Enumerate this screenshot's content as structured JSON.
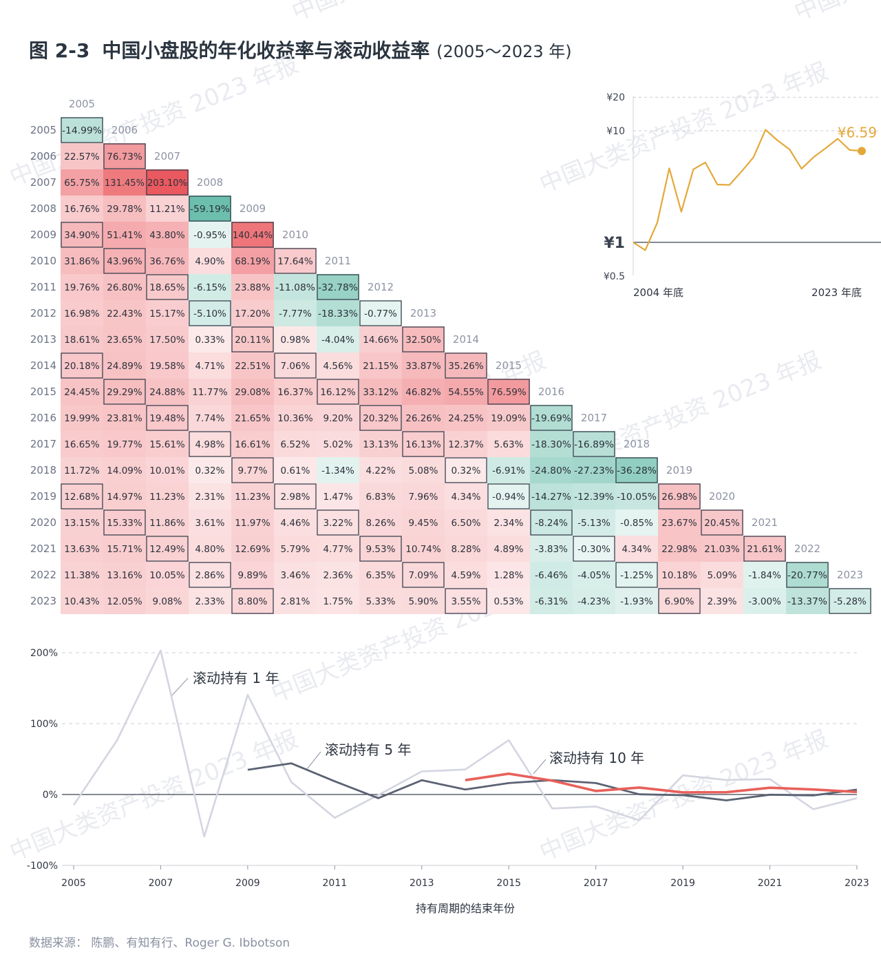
{
  "title": {
    "figure_number": "图 2-3",
    "text": "中国小盘股的年化收益率与滚动收益率",
    "range": "(2005～2023 年)"
  },
  "source": "数据来源：  陈鹏、有知有行、Roger G. Ibbotson",
  "watermark": "中国大类资产投资 2023 年报",
  "colors": {
    "positive": "#e8474d",
    "negative": "#3aa98f",
    "roll1": "#d3d5e0",
    "roll5": "#5b6272",
    "roll10": "#e8605a",
    "wealth": "#e4a83a"
  },
  "chart_data": [
    {
      "type": "heatmap",
      "title": "",
      "years": [
        "2005",
        "2006",
        "2007",
        "2008",
        "2009",
        "2010",
        "2011",
        "2012",
        "2013",
        "2014",
        "2015",
        "2016",
        "2017",
        "2018",
        "2019",
        "2020",
        "2021",
        "2022",
        "2023"
      ],
      "cells": [
        [
          "-14.99%"
        ],
        [
          "22.57%",
          "76.73%"
        ],
        [
          "65.75%",
          "131.45%",
          "203.10%"
        ],
        [
          "16.76%",
          "29.78%",
          "11.21%",
          "-59.19%"
        ],
        [
          "34.90%",
          "51.41%",
          "43.80%",
          "-0.95%",
          "140.44%"
        ],
        [
          "31.86%",
          "43.96%",
          "36.76%",
          "4.90%",
          "68.19%",
          "17.64%"
        ],
        [
          "19.76%",
          "26.80%",
          "18.65%",
          "-6.15%",
          "23.88%",
          "-11.08%",
          "-32.78%"
        ],
        [
          "16.98%",
          "22.43%",
          "15.17%",
          "-5.10%",
          "17.20%",
          "-7.77%",
          "-18.33%",
          "-0.77%"
        ],
        [
          "18.61%",
          "23.65%",
          "17.50%",
          "0.33%",
          "20.11%",
          "0.98%",
          "-4.04%",
          "14.66%",
          "32.50%"
        ],
        [
          "20.18%",
          "24.89%",
          "19.58%",
          "4.71%",
          "22.51%",
          "7.06%",
          "4.56%",
          "21.15%",
          "33.87%",
          "35.26%"
        ],
        [
          "24.45%",
          "29.29%",
          "24.88%",
          "11.77%",
          "29.08%",
          "16.37%",
          "16.12%",
          "33.12%",
          "46.82%",
          "54.55%",
          "76.59%"
        ],
        [
          "19.99%",
          "23.81%",
          "19.48%",
          "7.74%",
          "21.65%",
          "10.36%",
          "9.20%",
          "20.32%",
          "26.26%",
          "24.25%",
          "19.09%",
          "-19.69%"
        ],
        [
          "16.65%",
          "19.77%",
          "15.61%",
          "4.98%",
          "16.61%",
          "6.52%",
          "5.02%",
          "13.13%",
          "16.13%",
          "12.37%",
          "5.63%",
          "-18.30%",
          "-16.89%"
        ],
        [
          "11.72%",
          "14.09%",
          "10.01%",
          "0.32%",
          "9.77%",
          "0.61%",
          "-1.34%",
          "4.22%",
          "5.08%",
          "0.32%",
          "-6.91%",
          "-24.80%",
          "-27.23%",
          "-36.28%"
        ],
        [
          "12.68%",
          "14.97%",
          "11.23%",
          "2.31%",
          "11.23%",
          "2.98%",
          "1.47%",
          "6.83%",
          "7.96%",
          "4.34%",
          "-0.94%",
          "-14.27%",
          "-12.39%",
          "-10.05%",
          "26.98%"
        ],
        [
          "13.15%",
          "15.33%",
          "11.86%",
          "3.61%",
          "11.97%",
          "4.46%",
          "3.22%",
          "8.26%",
          "9.45%",
          "6.50%",
          "2.34%",
          "-8.24%",
          "-5.13%",
          "-0.85%",
          "23.67%",
          "20.45%"
        ],
        [
          "13.63%",
          "15.71%",
          "12.49%",
          "4.80%",
          "12.69%",
          "5.79%",
          "4.77%",
          "9.53%",
          "10.74%",
          "8.28%",
          "4.89%",
          "-3.83%",
          "-0.30%",
          "4.34%",
          "22.98%",
          "21.03%",
          "21.61%"
        ],
        [
          "11.38%",
          "13.16%",
          "10.05%",
          "2.86%",
          "9.89%",
          "3.46%",
          "2.36%",
          "6.35%",
          "7.09%",
          "4.59%",
          "1.28%",
          "-6.46%",
          "-4.05%",
          "-1.25%",
          "10.18%",
          "5.09%",
          "-1.84%",
          "-20.77%"
        ],
        [
          "10.43%",
          "12.05%",
          "9.08%",
          "2.33%",
          "8.80%",
          "2.81%",
          "1.75%",
          "5.33%",
          "5.90%",
          "3.55%",
          "0.53%",
          "-6.31%",
          "-4.23%",
          "-1.93%",
          "6.90%",
          "2.39%",
          "-3.00%",
          "-13.37%",
          "-5.28%"
        ]
      ],
      "boxed_cells": [
        [
          0,
          0
        ],
        [
          1,
          1
        ],
        [
          2,
          2
        ],
        [
          3,
          3
        ],
        [
          4,
          4
        ],
        [
          5,
          5
        ],
        [
          6,
          6
        ],
        [
          7,
          7
        ],
        [
          8,
          8
        ],
        [
          9,
          9
        ],
        [
          10,
          10
        ],
        [
          11,
          11
        ],
        [
          12,
          12
        ],
        [
          13,
          13
        ],
        [
          14,
          14
        ],
        [
          15,
          15
        ],
        [
          16,
          16
        ],
        [
          17,
          17
        ],
        [
          18,
          18
        ],
        [
          4,
          0
        ],
        [
          9,
          0
        ],
        [
          14,
          0
        ],
        [
          5,
          1
        ],
        [
          10,
          1
        ],
        [
          15,
          1
        ],
        [
          6,
          2
        ],
        [
          11,
          2
        ],
        [
          16,
          2
        ],
        [
          7,
          3
        ],
        [
          12,
          3
        ],
        [
          17,
          3
        ],
        [
          8,
          4
        ],
        [
          13,
          4
        ],
        [
          18,
          4
        ],
        [
          9,
          5
        ],
        [
          14,
          5
        ],
        [
          10,
          6
        ],
        [
          15,
          6
        ],
        [
          11,
          7
        ],
        [
          16,
          7
        ],
        [
          12,
          8
        ],
        [
          17,
          8
        ],
        [
          13,
          9
        ],
        [
          18,
          9
        ],
        [
          14,
          10
        ],
        [
          15,
          11
        ],
        [
          16,
          12
        ],
        [
          17,
          13
        ],
        [
          18,
          14
        ]
      ]
    },
    {
      "type": "line",
      "title": "",
      "x_start_label": "2004 年底",
      "x_end_label": "2023 年底",
      "y_scale": "log",
      "y_ticks": [
        "¥20",
        "¥10",
        "¥1",
        "¥0.5"
      ],
      "y_tick_values": [
        20,
        10,
        1,
        0.5
      ],
      "end_label": "¥6.59",
      "x": [
        2004,
        2005,
        2006,
        2007,
        2008,
        2009,
        2010,
        2011,
        2012,
        2013,
        2014,
        2015,
        2016,
        2017,
        2018,
        2019,
        2020,
        2021,
        2022,
        2023
      ],
      "values": [
        1.0,
        0.85,
        1.5,
        4.61,
        1.88,
        4.52,
        5.2,
        3.3,
        3.27,
        4.31,
        5.79,
        10.22,
        8.19,
        6.81,
        4.57,
        5.8,
        6.98,
        8.49,
        6.73,
        6.59
      ]
    },
    {
      "type": "line",
      "title": "",
      "xlabel": "持有周期的结束年份",
      "ylabel": "",
      "ylim": [
        -100,
        200
      ],
      "y_ticks": [
        "200%",
        "100%",
        "0%",
        "-100%"
      ],
      "y_tick_values": [
        200,
        100,
        0,
        -100
      ],
      "x_ticks": [
        "2005",
        "2007",
        "2009",
        "2011",
        "2013",
        "2015",
        "2017",
        "2019",
        "2021",
        "2023"
      ],
      "series": [
        {
          "name": "滚动持有 1 年",
          "x": [
            2005,
            2006,
            2007,
            2008,
            2009,
            2010,
            2011,
            2012,
            2013,
            2014,
            2015,
            2016,
            2017,
            2018,
            2019,
            2020,
            2021,
            2022,
            2023
          ],
          "values": [
            -14.99,
            76.73,
            203.1,
            -59.19,
            140.44,
            17.64,
            -32.78,
            -0.77,
            32.5,
            35.26,
            76.59,
            -19.69,
            -16.89,
            -36.28,
            26.98,
            20.45,
            21.61,
            -20.77,
            -5.28
          ]
        },
        {
          "name": "滚动持有 5 年",
          "x": [
            2009,
            2010,
            2011,
            2012,
            2013,
            2014,
            2015,
            2016,
            2017,
            2018,
            2019,
            2020,
            2021,
            2022,
            2023
          ],
          "values": [
            34.9,
            43.96,
            18.65,
            -5.1,
            20.11,
            7.06,
            16.12,
            20.32,
            16.13,
            0.32,
            -0.94,
            -8.24,
            -0.3,
            -1.25,
            6.9
          ]
        },
        {
          "name": "滚动持有 10 年",
          "x": [
            2014,
            2015,
            2016,
            2017,
            2018,
            2019,
            2020,
            2021,
            2022,
            2023
          ],
          "values": [
            20.18,
            29.29,
            19.48,
            4.98,
            9.77,
            2.98,
            3.22,
            9.53,
            7.09,
            3.55
          ]
        }
      ]
    }
  ]
}
